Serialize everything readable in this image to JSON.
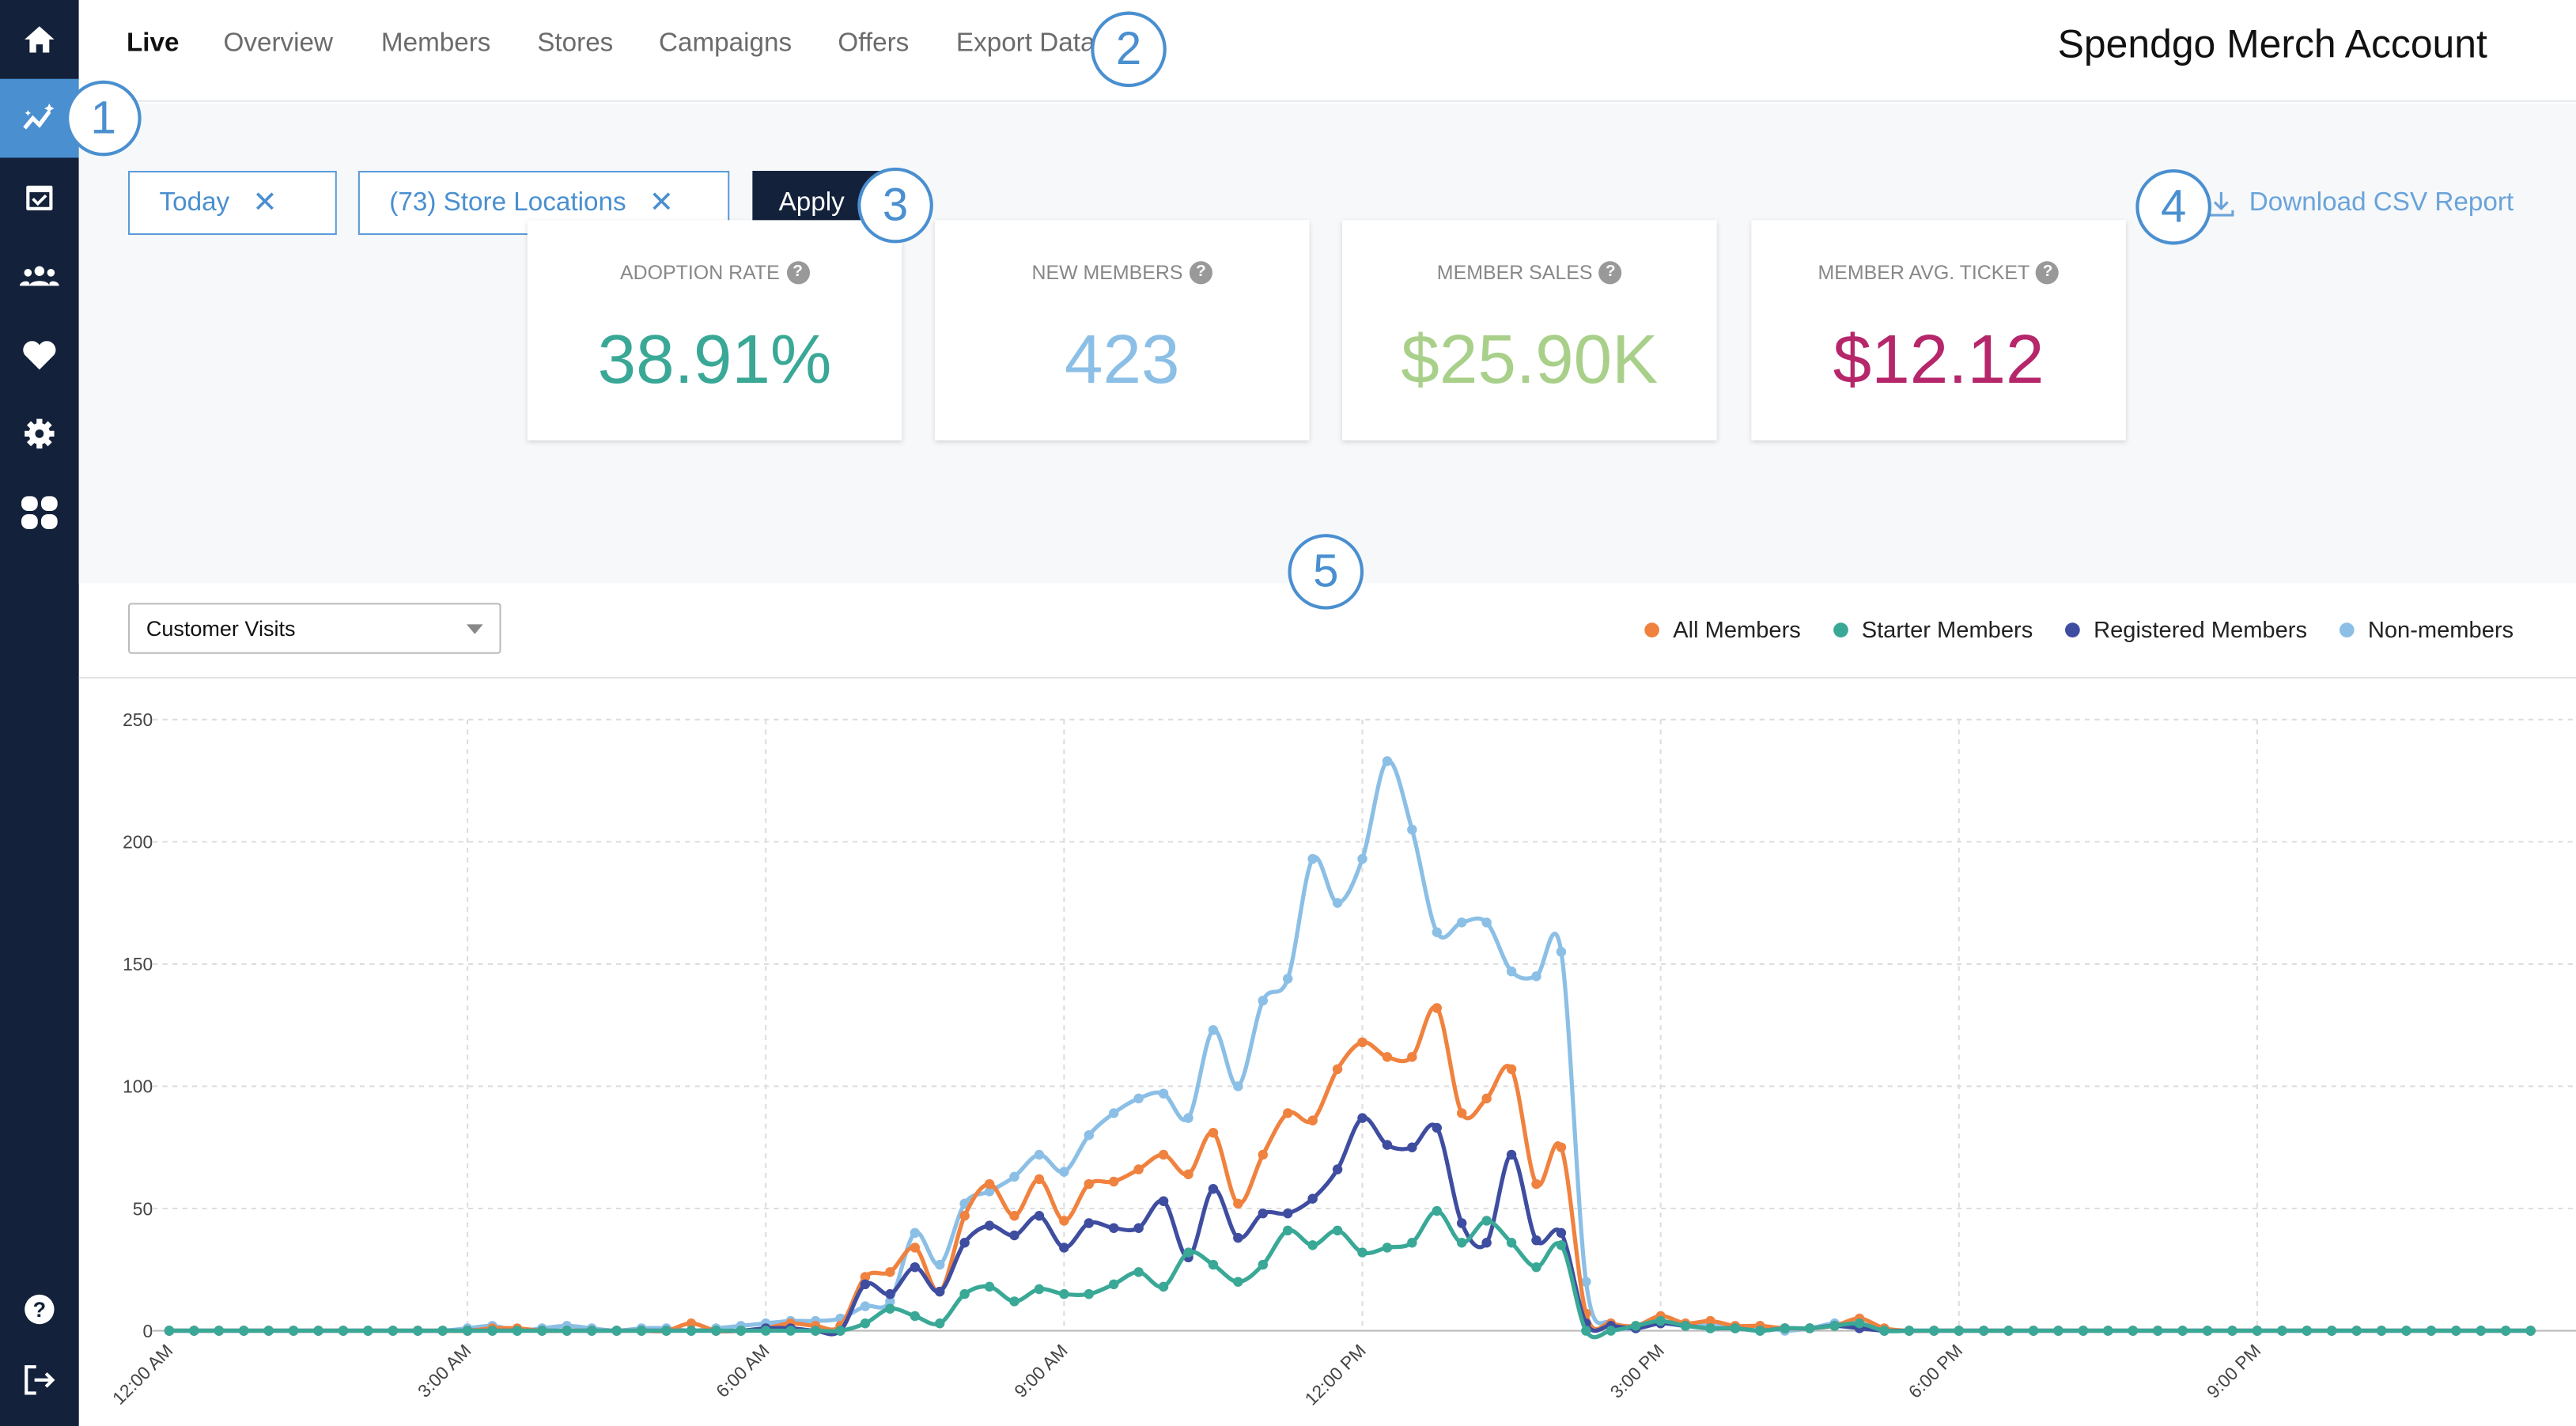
{
  "sidebar": {
    "items": [
      {
        "icon": "home-icon"
      },
      {
        "icon": "live-analytics-icon",
        "active": true
      },
      {
        "icon": "calendar-check-icon"
      },
      {
        "icon": "users-icon"
      },
      {
        "icon": "heart-icon"
      },
      {
        "icon": "gear-icon"
      },
      {
        "icon": "apps-icon"
      }
    ],
    "bottom": [
      {
        "icon": "help-icon"
      },
      {
        "icon": "logout-icon"
      }
    ]
  },
  "header": {
    "tabs": [
      {
        "label": "Live",
        "active": true
      },
      {
        "label": "Overview"
      },
      {
        "label": "Members"
      },
      {
        "label": "Stores"
      },
      {
        "label": "Campaigns"
      },
      {
        "label": "Offers"
      },
      {
        "label": "Export Data"
      }
    ],
    "account": "Spendgo Merch Account"
  },
  "filters": {
    "date": "Today",
    "stores": "(73) Store Locations",
    "apply": "Apply",
    "download": "Download CSV Report"
  },
  "annotations": [
    "1",
    "2",
    "3",
    "4",
    "5"
  ],
  "kpis": [
    {
      "label": "ADOPTION RATE",
      "value": "38.91%",
      "color": "#3aa896"
    },
    {
      "label": "NEW MEMBERS",
      "value": "423",
      "color": "#8bbfe6"
    },
    {
      "label": "MEMBER SALES",
      "value": "$25.90K",
      "color": "#a9d08a"
    },
    {
      "label": "MEMBER AVG. TICKET",
      "value": "$12.12",
      "color": "#b5276a"
    }
  ],
  "metric_select": {
    "value": "Customer Visits"
  },
  "chart_data": {
    "type": "line",
    "x_start": "12:00 AM",
    "x_step_minutes": 15,
    "x_ticks": [
      "12:00 AM",
      "3:00 AM",
      "6:00 AM",
      "9:00 AM",
      "12:00 PM",
      "3:00 PM",
      "6:00 PM",
      "9:00 PM"
    ],
    "y_ticks": [
      0,
      50,
      100,
      150,
      200,
      250
    ],
    "ylim": [
      0,
      250
    ],
    "grid": true,
    "legend": "top-right",
    "series": [
      {
        "name": "Non-members",
        "color": "#8bbfe6",
        "values": [
          0,
          0,
          0,
          0,
          0,
          0,
          0,
          0,
          0,
          0,
          0,
          0,
          1,
          2,
          0,
          1,
          2,
          1,
          0,
          1,
          1,
          0,
          1,
          2,
          3,
          4,
          4,
          5,
          10,
          12,
          40,
          27,
          52,
          57,
          63,
          72,
          65,
          80,
          89,
          95,
          97,
          87,
          123,
          100,
          135,
          144,
          193,
          175,
          193,
          233,
          205,
          163,
          167,
          167,
          147,
          145,
          155,
          20,
          3,
          1,
          3,
          2,
          3,
          1,
          2,
          0,
          1,
          3,
          2,
          0,
          0,
          0,
          0,
          0,
          0,
          0,
          0,
          0,
          0,
          0,
          0,
          0,
          0,
          0,
          0,
          0,
          0,
          0,
          0,
          0,
          0,
          0,
          0,
          0,
          0,
          0
        ]
      },
      {
        "name": "All Members",
        "color": "#f0823f",
        "values": [
          0,
          0,
          0,
          0,
          0,
          0,
          0,
          0,
          0,
          0,
          0,
          0,
          0,
          1,
          1,
          0,
          0,
          0,
          0,
          0,
          0,
          3,
          0,
          0,
          1,
          3,
          2,
          2,
          22,
          24,
          34,
          16,
          47,
          60,
          47,
          62,
          45,
          60,
          61,
          66,
          72,
          64,
          81,
          52,
          72,
          89,
          86,
          107,
          118,
          112,
          112,
          132,
          89,
          95,
          107,
          60,
          75,
          7,
          3,
          2,
          6,
          3,
          4,
          2,
          2,
          1,
          1,
          2,
          5,
          1,
          0,
          0,
          0,
          0,
          0,
          0,
          0,
          0,
          0,
          0,
          0,
          0,
          0,
          0,
          0,
          0,
          0,
          0,
          0,
          0,
          0,
          0,
          0,
          0,
          0,
          0
        ]
      },
      {
        "name": "Registered Members",
        "color": "#3f4da0",
        "values": [
          0,
          0,
          0,
          0,
          0,
          0,
          0,
          0,
          0,
          0,
          0,
          0,
          0,
          0,
          0,
          0,
          0,
          0,
          0,
          0,
          0,
          0,
          0,
          0,
          1,
          1,
          0,
          0,
          19,
          15,
          26,
          16,
          36,
          43,
          39,
          47,
          34,
          44,
          42,
          42,
          53,
          30,
          58,
          38,
          48,
          48,
          54,
          66,
          87,
          76,
          75,
          83,
          44,
          36,
          72,
          37,
          40,
          3,
          2,
          1,
          3,
          2,
          1,
          1,
          0,
          1,
          1,
          2,
          1,
          0,
          0,
          0,
          0,
          0,
          0,
          0,
          0,
          0,
          0,
          0,
          0,
          0,
          0,
          0,
          0,
          0,
          0,
          0,
          0,
          0,
          0,
          0,
          0,
          0,
          0,
          0
        ]
      },
      {
        "name": "Starter Members",
        "color": "#3aa896",
        "values": [
          0,
          0,
          0,
          0,
          0,
          0,
          0,
          0,
          0,
          0,
          0,
          0,
          0,
          0,
          0,
          0,
          0,
          0,
          0,
          0,
          0,
          0,
          0,
          0,
          0,
          0,
          0,
          0,
          3,
          9,
          6,
          3,
          15,
          18,
          12,
          17,
          15,
          15,
          19,
          24,
          18,
          32,
          27,
          20,
          27,
          41,
          35,
          41,
          32,
          34,
          36,
          49,
          36,
          45,
          36,
          26,
          35,
          0,
          0,
          2,
          4,
          2,
          1,
          1,
          0,
          1,
          1,
          2,
          3,
          0,
          0,
          0,
          0,
          0,
          0,
          0,
          0,
          0,
          0,
          0,
          0,
          0,
          0,
          0,
          0,
          0,
          0,
          0,
          0,
          0,
          0,
          0,
          0,
          0,
          0,
          0
        ]
      }
    ],
    "legend_order": [
      "All Members",
      "Starter Members",
      "Registered Members",
      "Non-members"
    ]
  }
}
